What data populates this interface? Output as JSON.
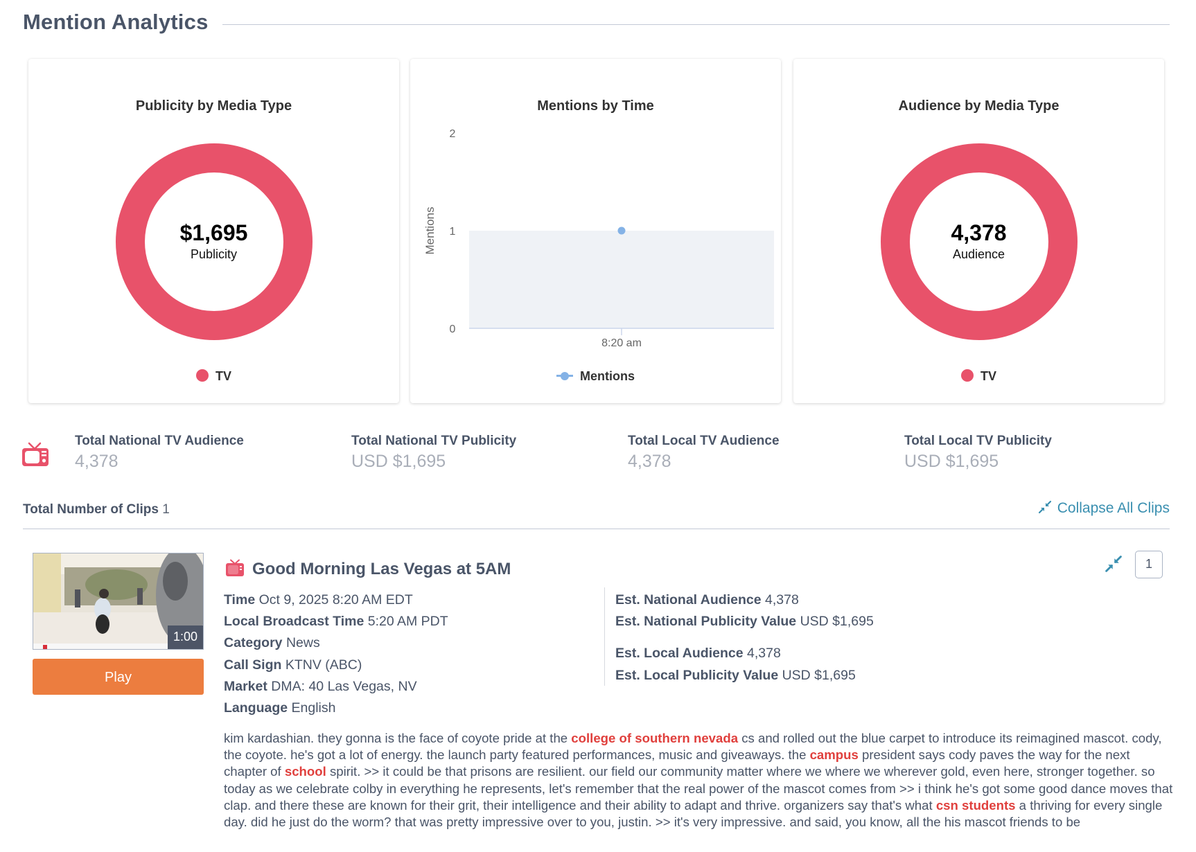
{
  "page_title": "Mention Analytics",
  "colors": {
    "tv": "#e8526a",
    "mentions_line": "#84b2e6",
    "plot_band": "#eff2f6",
    "accent_link": "#3a8fb0",
    "play_button": "#ec7d3f",
    "highlight": "#e0403d"
  },
  "cards": {
    "publicity": {
      "title": "Publicity by Media Type",
      "center_value": "$1,695",
      "center_label": "Publicity",
      "legend": [
        {
          "label": "TV",
          "color": "#e8526a"
        }
      ]
    },
    "mentions": {
      "title": "Mentions by Time",
      "legend_label": "Mentions"
    },
    "audience": {
      "title": "Audience by Media Type",
      "center_value": "4,378",
      "center_label": "Audience",
      "legend": [
        {
          "label": "TV",
          "color": "#e8526a"
        }
      ]
    }
  },
  "chart_data": [
    {
      "type": "pie",
      "title": "Publicity by Media Type",
      "categories": [
        "TV"
      ],
      "values": [
        1695
      ],
      "center_text": "$1,695",
      "center_subtext": "Publicity",
      "legend": [
        "TV"
      ],
      "legend_position": "bottom"
    },
    {
      "type": "line",
      "title": "Mentions by Time",
      "x": [
        "8:20 am"
      ],
      "series": [
        {
          "name": "Mentions",
          "values": [
            1
          ]
        }
      ],
      "xlabel": "",
      "ylabel": "Mentions",
      "ylim": [
        0,
        2
      ],
      "yticks": [
        0,
        1,
        2
      ],
      "legend_position": "bottom",
      "grid": false
    },
    {
      "type": "pie",
      "title": "Audience by Media Type",
      "categories": [
        "TV"
      ],
      "values": [
        4378
      ],
      "center_text": "4,378",
      "center_subtext": "Audience",
      "legend": [
        "TV"
      ],
      "legend_position": "bottom"
    }
  ],
  "stats": [
    {
      "label": "Total National TV Audience",
      "value": "4,378"
    },
    {
      "label": "Total National TV Publicity",
      "value": "USD $1,695"
    },
    {
      "label": "Total Local TV Audience",
      "value": "4,378"
    },
    {
      "label": "Total Local TV Publicity",
      "value": "USD $1,695"
    }
  ],
  "clips_summary": {
    "label": "Total Number of Clips",
    "count": "1",
    "collapse_all_label": "Collapse All Clips"
  },
  "clip": {
    "index": "1",
    "title": "Good Morning Las Vegas at 5AM",
    "duration": "1:00",
    "play_label": "Play",
    "meta_left": [
      {
        "label": "Time",
        "value": "Oct 9, 2025 8:20 AM EDT"
      },
      {
        "label": "Local Broadcast Time",
        "value": "5:20 AM PDT"
      },
      {
        "label": "Category",
        "value": "News"
      },
      {
        "label": "Call Sign",
        "value": "KTNV (ABC)"
      },
      {
        "label": "Market",
        "value": "DMA: 40 Las Vegas, NV"
      },
      {
        "label": "Language",
        "value": "English"
      }
    ],
    "meta_right": [
      {
        "label": "Est. National Audience",
        "value": "4,378"
      },
      {
        "label": "Est. National Publicity Value",
        "value": "USD $1,695"
      },
      {
        "label": "Est. Local Audience",
        "value": "4,378"
      },
      {
        "label": "Est. Local Publicity Value",
        "value": "USD $1,695"
      }
    ],
    "transcript": [
      {
        "t": "kim kardashian. they gonna is the face of coyote pride at the ",
        "hl": false
      },
      {
        "t": "college of southern nevada",
        "hl": true
      },
      {
        "t": " cs and rolled out the blue carpet to introduce its reimagined mascot. cody, the coyote. he's got a lot of energy. the launch party featured performances, music and giveaways. the ",
        "hl": false
      },
      {
        "t": "campus",
        "hl": true
      },
      {
        "t": " president says cody paves the way for the next chapter of ",
        "hl": false
      },
      {
        "t": "school",
        "hl": true
      },
      {
        "t": " spirit. >> it could be that prisons are resilient. our field our community matter where we where we wherever gold, even here, stronger together. so today as we celebrate colby in everything he represents, let's remember that the real power of the mascot comes from >> i think he's got some good dance moves that clap. and there these are known for their grit, their intelligence and their ability to adapt and thrive. organizers say that's what ",
        "hl": false
      },
      {
        "t": "csn students",
        "hl": true
      },
      {
        "t": " a thriving for every single day. did he just do the worm? that was pretty impressive over to you, justin. >> it's very impressive. and said, you know, all the his mascot friends to be",
        "hl": false
      }
    ]
  }
}
